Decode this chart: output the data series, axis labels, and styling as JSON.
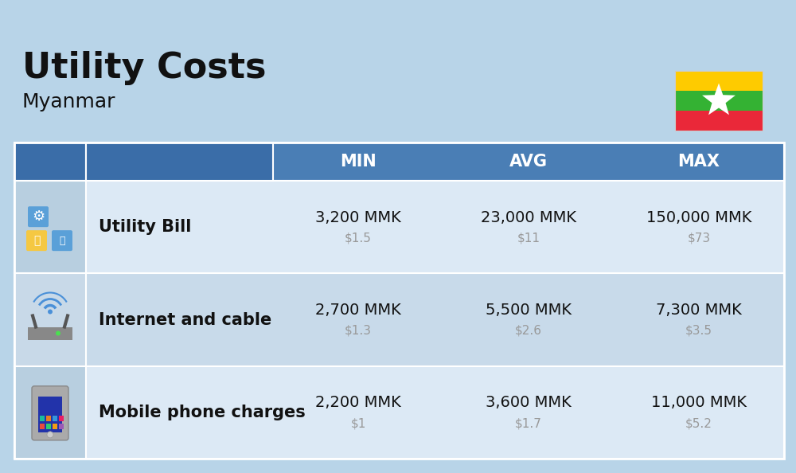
{
  "title": "Utility Costs",
  "subtitle": "Myanmar",
  "background_color": "#b8d4e8",
  "header_color": "#4a7eb5",
  "header_text_color": "#ffffff",
  "row_color_light": "#dce9f5",
  "row_color_dark": "#c8daea",
  "icon_bg_color": "#c5d8ea",
  "text_color_dark": "#111111",
  "text_color_usd": "#999999",
  "col_headers": [
    "MIN",
    "AVG",
    "MAX"
  ],
  "rows": [
    {
      "label": "Utility Bill",
      "min_mmk": "3,200 MMK",
      "min_usd": "$1.5",
      "avg_mmk": "23,000 MMK",
      "avg_usd": "$11",
      "max_mmk": "150,000 MMK",
      "max_usd": "$73",
      "icon": "utility"
    },
    {
      "label": "Internet and cable",
      "min_mmk": "2,700 MMK",
      "min_usd": "$1.3",
      "avg_mmk": "5,500 MMK",
      "avg_usd": "$2.6",
      "max_mmk": "7,300 MMK",
      "max_usd": "$3.5",
      "icon": "internet"
    },
    {
      "label": "Mobile phone charges",
      "min_mmk": "2,200 MMK",
      "min_usd": "$1",
      "avg_mmk": "3,600 MMK",
      "avg_usd": "$1.7",
      "max_mmk": "11,000 MMK",
      "max_usd": "$5.2",
      "icon": "mobile"
    }
  ],
  "flag_stripes": [
    "#FECB00",
    "#34B233",
    "#EA2839"
  ],
  "flag_star_color": "#FFFFFF"
}
